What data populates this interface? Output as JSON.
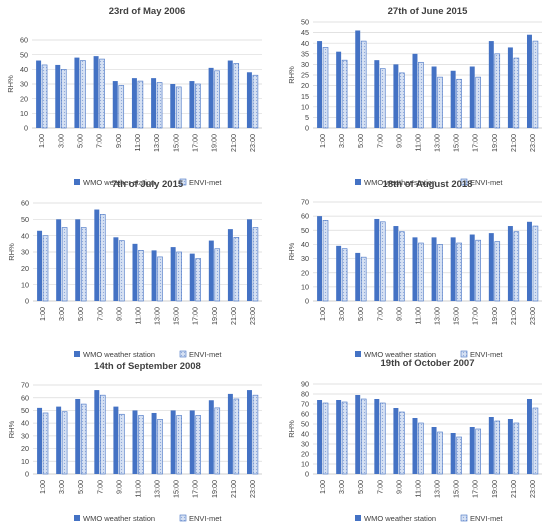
{
  "legend": {
    "series_a": "WMO weather station",
    "series_b": "ENVI-met"
  },
  "colors": {
    "wmo": "#4472C4",
    "envi_fill": "#D6E1F3",
    "envi_stroke": "#4472C4",
    "grid": "#D9D9D9",
    "axis": "#BFBFBF"
  },
  "chart_data": [
    {
      "type": "bar",
      "title": "23rd of May 2006",
      "ylabel": "RH%",
      "categories": [
        "1:00",
        "3:00",
        "5:00",
        "7:00",
        "9:00",
        "11:00",
        "13:00",
        "15:00",
        "17:00",
        "19:00",
        "21:00",
        "23:00"
      ],
      "ylim": [
        0,
        60
      ],
      "yticks": [
        0,
        10,
        20,
        30,
        40,
        50,
        60
      ],
      "series": [
        {
          "name": "WMO weather station",
          "values": [
            46,
            43,
            48,
            49,
            32,
            34,
            34,
            30,
            32,
            41,
            46,
            38
          ]
        },
        {
          "name": "ENVI-met",
          "values": [
            43,
            40,
            46,
            47,
            29,
            32,
            31,
            28,
            30,
            39,
            44,
            36
          ]
        }
      ]
    },
    {
      "type": "bar",
      "title": "27th of June 2015",
      "ylabel": "RH%",
      "categories": [
        "1:00",
        "3:00",
        "5:00",
        "7:00",
        "9:00",
        "11:00",
        "13:00",
        "15:00",
        "17:00",
        "19:00",
        "21:00",
        "23:00"
      ],
      "ylim": [
        0,
        50
      ],
      "yticks": [
        0,
        5,
        10,
        15,
        20,
        25,
        30,
        35,
        40,
        45,
        50
      ],
      "series": [
        {
          "name": "WMO weather station",
          "values": [
            41,
            36,
            46,
            32,
            30,
            35,
            29,
            27,
            29,
            41,
            38,
            44
          ]
        },
        {
          "name": "ENVI-met",
          "values": [
            38,
            32,
            41,
            28,
            26,
            31,
            24,
            23,
            24,
            35,
            33,
            41
          ]
        }
      ]
    },
    {
      "type": "bar",
      "title": "7th of July 2015",
      "ylabel": "RH%",
      "categories": [
        "1:00",
        "3:00",
        "5:00",
        "7:00",
        "9:00",
        "11:00",
        "13:00",
        "15:00",
        "17:00",
        "19:00",
        "21:00",
        "23:00"
      ],
      "ylim": [
        0,
        60
      ],
      "yticks": [
        0,
        10,
        20,
        30,
        40,
        50,
        60
      ],
      "series": [
        {
          "name": "WMO weather station",
          "values": [
            43,
            50,
            50,
            56,
            39,
            35,
            31,
            33,
            29,
            37,
            44,
            50
          ]
        },
        {
          "name": "ENVI-met",
          "values": [
            40,
            45,
            45,
            53,
            37,
            31,
            27,
            30,
            26,
            32,
            39,
            45
          ]
        }
      ]
    },
    {
      "type": "bar",
      "title": "18th of August 2018",
      "ylabel": "RH%",
      "categories": [
        "1:00",
        "3:00",
        "5:00",
        "7:00",
        "9:00",
        "11:00",
        "13:00",
        "15:00",
        "17:00",
        "19:00",
        "21:00",
        "23:00"
      ],
      "ylim": [
        0,
        70
      ],
      "yticks": [
        0,
        10,
        20,
        30,
        40,
        50,
        60,
        70
      ],
      "series": [
        {
          "name": "WMO weather station",
          "values": [
            60,
            39,
            34,
            58,
            53,
            45,
            45,
            45,
            47,
            48,
            53,
            56
          ]
        },
        {
          "name": "ENVI-met",
          "values": [
            57,
            37,
            31,
            56,
            49,
            41,
            40,
            41,
            43,
            42,
            49,
            53
          ]
        }
      ]
    },
    {
      "type": "bar",
      "title": "14th of September 2008",
      "ylabel": "RH%",
      "categories": [
        "1:00",
        "3:00",
        "5:00",
        "7:00",
        "9:00",
        "11:00",
        "13:00",
        "15:00",
        "17:00",
        "19:00",
        "21:00",
        "23:00"
      ],
      "ylim": [
        0,
        70
      ],
      "yticks": [
        0,
        10,
        20,
        30,
        40,
        50,
        60,
        70
      ],
      "series": [
        {
          "name": "WMO weather station",
          "values": [
            52,
            53,
            59,
            66,
            53,
            50,
            48,
            50,
            50,
            58,
            63,
            66
          ]
        },
        {
          "name": "ENVI-met",
          "values": [
            48,
            49,
            55,
            62,
            47,
            46,
            43,
            46,
            46,
            52,
            59,
            62
          ]
        }
      ]
    },
    {
      "type": "bar",
      "title": "19th of October 2007",
      "ylabel": "RH%",
      "categories": [
        "1:00",
        "3:00",
        "5:00",
        "7:00",
        "9:00",
        "11:00",
        "13:00",
        "15:00",
        "17:00",
        "19:00",
        "21:00",
        "23:00"
      ],
      "ylim": [
        0,
        90
      ],
      "yticks": [
        0,
        10,
        20,
        30,
        40,
        50,
        60,
        70,
        80,
        90
      ],
      "series": [
        {
          "name": "WMO weather station",
          "values": [
            74,
            74,
            79,
            75,
            66,
            56,
            47,
            41,
            47,
            57,
            55,
            75
          ]
        },
        {
          "name": "ENVI-met",
          "values": [
            71,
            72,
            75,
            71,
            62,
            51,
            42,
            37,
            45,
            53,
            51,
            66
          ]
        }
      ]
    }
  ]
}
